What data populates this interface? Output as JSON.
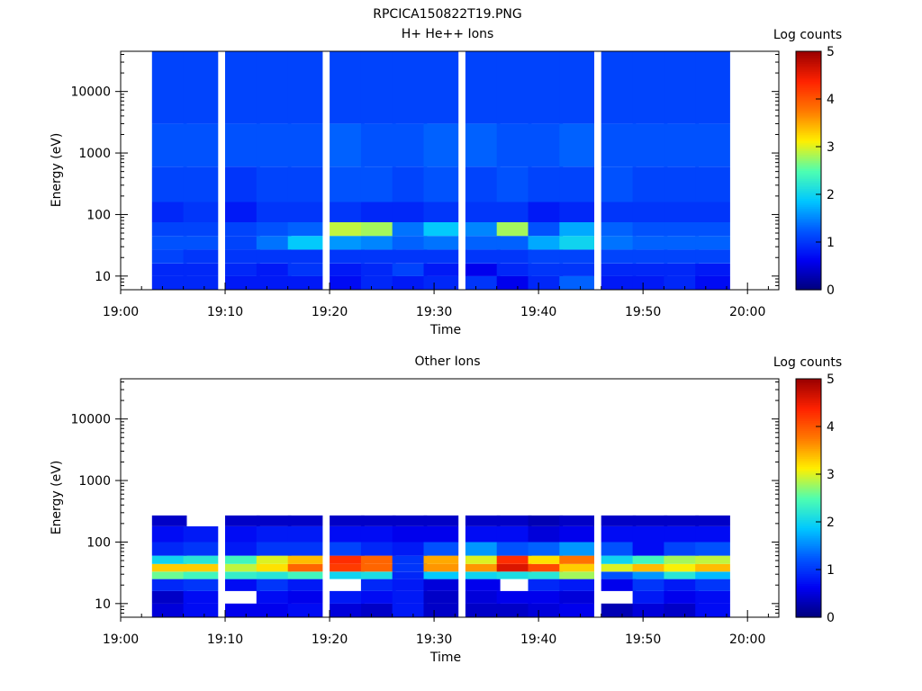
{
  "figure": {
    "title": "RPCICA150822T19.PNG"
  },
  "colormap": [
    "#00007a",
    "#0000f2",
    "#0058ff",
    "#00c8ff",
    "#4fffb0",
    "#ffef00",
    "#ff7a00",
    "#ff2200",
    "#9a0000"
  ],
  "chart_data": [
    {
      "type": "heatmap",
      "title": "H+ He++ Ions",
      "xlabel": "Time",
      "ylabel": "Energy (eV)",
      "colorbar_label": "Log counts",
      "x_ticks": [
        "19:00",
        "19:10",
        "19:20",
        "19:30",
        "19:40",
        "19:50",
        "20:00"
      ],
      "x_range": [
        "19:00",
        "20:03"
      ],
      "y_ticks": [
        "10",
        "100",
        "1000",
        "10000"
      ],
      "y_scale": "log",
      "y_range": [
        6,
        45000
      ],
      "colorbar_ticks": [
        "0",
        "1",
        "2",
        "3",
        "4",
        "5"
      ],
      "z_range": [
        0,
        5
      ],
      "time_bins": [
        "19:03",
        "19:06",
        "19:10",
        "19:13",
        "19:16",
        "19:20",
        "19:23",
        "19:26",
        "19:29",
        "19:33",
        "19:36",
        "19:39",
        "19:42",
        "19:46",
        "19:49",
        "19:52",
        "19:55"
      ],
      "energy_bands": [
        {
          "from": 6,
          "to": 10,
          "counts": [
            0.9,
            0.9,
            0.8,
            0.8,
            0.8,
            0.7,
            0.9,
            0.8,
            0.9,
            1.0,
            0.6,
            0.9,
            1.3,
            0.8,
            0.8,
            0.9,
            0.7
          ]
        },
        {
          "from": 10,
          "to": 16,
          "counts": [
            0.9,
            0.9,
            0.9,
            0.8,
            1.0,
            0.8,
            0.9,
            1.1,
            0.8,
            0.6,
            0.9,
            1.0,
            1.0,
            0.9,
            0.9,
            0.9,
            0.8
          ]
        },
        {
          "from": 16,
          "to": 27,
          "counts": [
            1.1,
            1.0,
            1.0,
            1.0,
            1.0,
            1.0,
            1.0,
            1.0,
            1.0,
            1.0,
            1.0,
            1.1,
            1.1,
            1.1,
            1.1,
            1.1,
            1.1
          ]
        },
        {
          "from": 27,
          "to": 45,
          "counts": [
            1.2,
            1.2,
            1.1,
            1.4,
            1.9,
            1.6,
            1.5,
            1.3,
            1.4,
            1.3,
            1.3,
            1.7,
            2.0,
            1.4,
            1.3,
            1.3,
            1.3
          ]
        },
        {
          "from": 45,
          "to": 75,
          "counts": [
            1.1,
            1.1,
            1.1,
            1.2,
            1.3,
            2.9,
            2.8,
            1.4,
            1.9,
            1.5,
            2.8,
            1.2,
            1.7,
            1.3,
            1.2,
            1.2,
            1.2
          ]
        },
        {
          "from": 75,
          "to": 160,
          "counts": [
            0.9,
            1.0,
            0.8,
            1.0,
            1.0,
            1.0,
            0.9,
            0.9,
            1.0,
            1.0,
            1.0,
            0.8,
            0.9,
            1.0,
            1.0,
            1.0,
            1.0
          ]
        },
        {
          "from": 160,
          "to": 600,
          "counts": [
            1.1,
            1.1,
            1.0,
            1.1,
            1.1,
            1.2,
            1.2,
            1.1,
            1.2,
            1.1,
            1.2,
            1.1,
            1.1,
            1.2,
            1.1,
            1.1,
            1.1
          ]
        },
        {
          "from": 600,
          "to": 3000,
          "counts": [
            1.2,
            1.2,
            1.2,
            1.2,
            1.2,
            1.3,
            1.2,
            1.2,
            1.3,
            1.3,
            1.2,
            1.2,
            1.3,
            1.2,
            1.2,
            1.2,
            1.2
          ]
        },
        {
          "from": 3000,
          "to": 45000,
          "counts": [
            1.1,
            1.1,
            1.1,
            1.1,
            1.1,
            1.1,
            1.1,
            1.1,
            1.1,
            1.1,
            1.1,
            1.1,
            1.1,
            1.1,
            1.1,
            1.1,
            1.1
          ]
        }
      ]
    },
    {
      "type": "heatmap",
      "title": "Other Ions",
      "xlabel": "Time",
      "ylabel": "Energy (eV)",
      "colorbar_label": "Log counts",
      "x_ticks": [
        "19:00",
        "19:10",
        "19:20",
        "19:30",
        "19:40",
        "19:50",
        "20:00"
      ],
      "x_range": [
        "19:00",
        "20:03"
      ],
      "y_ticks": [
        "10",
        "100",
        "1000",
        "10000"
      ],
      "y_scale": "log",
      "y_range": [
        6,
        45000
      ],
      "colorbar_ticks": [
        "0",
        "1",
        "2",
        "3",
        "4",
        "5"
      ],
      "z_range": [
        0,
        5
      ],
      "time_bins": [
        "19:03",
        "19:06",
        "19:10",
        "19:13",
        "19:16",
        "19:20",
        "19:23",
        "19:26",
        "19:29",
        "19:33",
        "19:36",
        "19:39",
        "19:42",
        "19:46",
        "19:49",
        "19:52",
        "19:55"
      ],
      "energy_bands": [
        {
          "from": 6,
          "to": 10,
          "counts": [
            0.5,
            0.7,
            0.6,
            0.6,
            0.7,
            0.5,
            0.4,
            0.8,
            0.4,
            0.4,
            0.4,
            0.5,
            0.6,
            0.3,
            0.5,
            0.4,
            0.7
          ]
        },
        {
          "from": 10,
          "to": 16,
          "counts": [
            0.4,
            0.7,
            null,
            0.7,
            0.6,
            0.8,
            0.7,
            0.8,
            0.4,
            0.5,
            0.6,
            0.6,
            0.5,
            null,
            0.8,
            0.6,
            0.7
          ]
        },
        {
          "from": 16,
          "to": 25,
          "counts": [
            0.9,
            1.0,
            0.7,
            1.0,
            0.8,
            null,
            0.9,
            0.8,
            0.5,
            0.6,
            null,
            0.9,
            0.8,
            0.6,
            1.0,
            0.8,
            1.0
          ]
        },
        {
          "from": 25,
          "to": 33,
          "counts": [
            2.6,
            2.4,
            2.3,
            2.2,
            2.4,
            2.0,
            2.1,
            0.9,
            1.9,
            2.0,
            2.1,
            2.2,
            2.8,
            1.2,
            1.6,
            2.2,
            1.8
          ]
        },
        {
          "from": 33,
          "to": 44,
          "counts": [
            3.3,
            3.3,
            2.9,
            3.2,
            3.9,
            4.2,
            3.9,
            1.0,
            3.6,
            3.6,
            4.6,
            4.1,
            3.3,
            3.0,
            3.4,
            3.1,
            3.4
          ]
        },
        {
          "from": 44,
          "to": 60,
          "counts": [
            2.0,
            2.2,
            2.4,
            3.0,
            3.4,
            4.3,
            3.9,
            1.0,
            3.5,
            3.0,
            4.3,
            3.2,
            3.8,
            2.0,
            2.4,
            2.8,
            2.9
          ]
        },
        {
          "from": 60,
          "to": 100,
          "counts": [
            0.9,
            1.0,
            0.8,
            1.0,
            1.0,
            1.1,
            0.9,
            0.8,
            1.2,
            1.6,
            1.2,
            1.3,
            1.6,
            1.2,
            0.7,
            1.1,
            1.2
          ]
        },
        {
          "from": 100,
          "to": 180,
          "counts": [
            0.7,
            0.8,
            0.7,
            0.8,
            0.8,
            0.7,
            0.7,
            0.6,
            0.6,
            0.7,
            0.7,
            0.5,
            0.6,
            0.7,
            0.7,
            0.7,
            0.7
          ]
        },
        {
          "from": 180,
          "to": 270,
          "counts": [
            0.4,
            null,
            0.4,
            0.4,
            0.4,
            0.4,
            0.4,
            0.4,
            0.4,
            0.4,
            0.4,
            0.3,
            0.4,
            0.4,
            0.4,
            0.4,
            0.4
          ]
        }
      ]
    }
  ]
}
